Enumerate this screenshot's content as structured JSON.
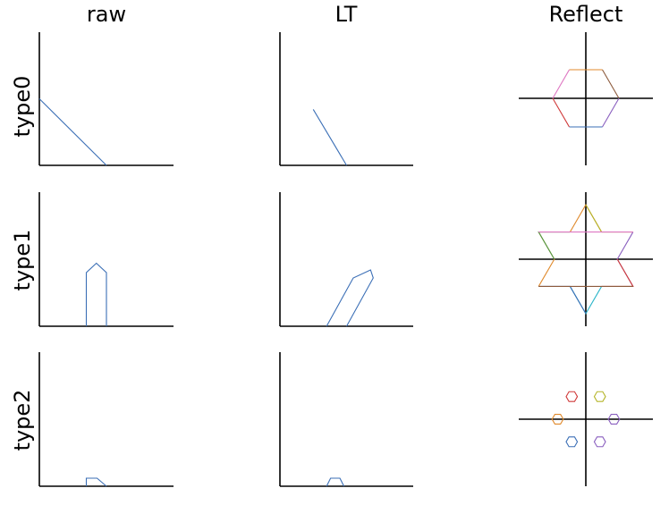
{
  "columns": [
    "raw",
    "LT",
    "Reflect"
  ],
  "rows": [
    "type0",
    "type1",
    "type2"
  ],
  "colors": {
    "blue": "#3b6fb6",
    "orange": "#e08a2c",
    "green": "#4e9a46",
    "red": "#d03a3a",
    "purple": "#8a5fbf",
    "brown": "#8c5a3c",
    "pink": "#de77c2",
    "olive": "#b5b52a",
    "cyan": "#2ab5c9",
    "axis": "#000000"
  },
  "chart_data": [
    {
      "type": "line",
      "row": "type0",
      "column": "raw",
      "series": [
        {
          "color": "#3b6fb6",
          "points": [
            [
              0,
              5
            ],
            [
              5,
              0
            ]
          ]
        }
      ]
    },
    {
      "type": "line",
      "row": "type0",
      "column": "LT",
      "series": [
        {
          "color": "#3b6fb6",
          "points": [
            [
              2.5,
              4.2
            ],
            [
              5,
              0
            ]
          ]
        }
      ]
    },
    {
      "type": "line",
      "row": "type0",
      "column": "Reflect",
      "series": [
        {
          "color": "#e08a2c",
          "points": [
            [
              -1,
              1.73
            ],
            [
              1,
              1.73
            ]
          ]
        },
        {
          "color": "#8c5a3c",
          "points": [
            [
              1,
              1.73
            ],
            [
              2,
              0
            ]
          ]
        },
        {
          "color": "#8a5fbf",
          "points": [
            [
              2,
              0
            ],
            [
              1,
              -1.73
            ]
          ]
        },
        {
          "color": "#3b6fb6",
          "points": [
            [
              1,
              -1.73
            ],
            [
              -1,
              -1.73
            ]
          ]
        },
        {
          "color": "#d03a3a",
          "points": [
            [
              -1,
              -1.73
            ],
            [
              -2,
              0
            ]
          ]
        },
        {
          "color": "#de77c2",
          "points": [
            [
              -2,
              0
            ],
            [
              -1,
              1.73
            ]
          ]
        }
      ]
    },
    {
      "type": "line",
      "row": "type1",
      "column": "raw",
      "series": [
        {
          "color": "#3b6fb6",
          "points": [
            [
              3.5,
              0
            ],
            [
              3.5,
              4
            ],
            [
              4.25,
              4.7
            ],
            [
              5,
              4
            ],
            [
              5,
              0
            ]
          ]
        }
      ]
    },
    {
      "type": "line",
      "row": "type1",
      "column": "LT",
      "series": [
        {
          "color": "#3b6fb6",
          "points": [
            [
              3.5,
              0
            ],
            [
              5.5,
              3.6
            ],
            [
              6.8,
              4.2
            ],
            [
              7,
              3.6
            ],
            [
              5,
              0
            ]
          ]
        }
      ]
    },
    {
      "type": "line",
      "row": "type1",
      "column": "Reflect",
      "series": [
        {
          "color": "#e08a2c",
          "points": [
            [
              -1,
              1.73
            ],
            [
              0,
              3.46
            ],
            [
              1,
              1.73
            ]
          ]
        },
        {
          "color": "#b5b52a",
          "points": [
            [
              0,
              3.46
            ],
            [
              1,
              1.73
            ],
            [
              3,
              1.73
            ]
          ]
        },
        {
          "color": "#8a5fbf",
          "points": [
            [
              3,
              1.73
            ],
            [
              2,
              0
            ],
            [
              3,
              -1.73
            ]
          ]
        },
        {
          "color": "#d03a3a",
          "points": [
            [
              2,
              0
            ],
            [
              3,
              -1.73
            ],
            [
              1,
              -1.73
            ]
          ]
        },
        {
          "color": "#2ab5c9",
          "points": [
            [
              1,
              -1.73
            ],
            [
              0,
              -3.46
            ],
            [
              -1,
              -1.73
            ]
          ]
        },
        {
          "color": "#3b6fb6",
          "points": [
            [
              0,
              -3.46
            ],
            [
              -1,
              -1.73
            ],
            [
              -3,
              -1.73
            ]
          ]
        },
        {
          "color": "#e08a2c",
          "points": [
            [
              -3,
              -1.73
            ],
            [
              -2,
              0
            ],
            [
              -3,
              1.73
            ]
          ]
        },
        {
          "color": "#4e9a46",
          "points": [
            [
              -2,
              0
            ],
            [
              -3,
              1.73
            ],
            [
              -1,
              1.73
            ]
          ]
        },
        {
          "color": "#de77c2",
          "points": [
            [
              -3,
              1.73
            ],
            [
              -1,
              1.73
            ],
            [
              1,
              1.73
            ],
            [
              3,
              1.73
            ]
          ]
        },
        {
          "color": "#8c5a3c",
          "points": [
            [
              -3,
              -1.73
            ],
            [
              -1,
              -1.73
            ],
            [
              1,
              -1.73
            ],
            [
              3,
              -1.73
            ]
          ]
        }
      ]
    },
    {
      "type": "line",
      "row": "type2",
      "column": "raw",
      "series": [
        {
          "color": "#3b6fb6",
          "points": [
            [
              3.5,
              0
            ],
            [
              3.5,
              0.6
            ],
            [
              4.3,
              0.6
            ],
            [
              5,
              0
            ]
          ]
        }
      ]
    },
    {
      "type": "line",
      "row": "type2",
      "column": "LT",
      "series": [
        {
          "color": "#3b6fb6",
          "points": [
            [
              3.5,
              0
            ],
            [
              3.8,
              0.6
            ],
            [
              4.5,
              0.6
            ],
            [
              4.8,
              0
            ]
          ]
        }
      ]
    },
    {
      "type": "line",
      "row": "type2",
      "column": "Reflect",
      "series": [
        {
          "color": "#d03a3a",
          "center": [
            -1,
            1.73
          ],
          "radius": 0.4
        },
        {
          "color": "#b5b52a",
          "center": [
            1,
            1.73
          ],
          "radius": 0.4
        },
        {
          "color": "#8a5fbf",
          "center": [
            2,
            0
          ],
          "radius": 0.4
        },
        {
          "color": "#e08a2c",
          "center": [
            -2,
            0
          ],
          "radius": 0.4
        },
        {
          "color": "#3b6fb6",
          "center": [
            -1,
            -1.73
          ],
          "radius": 0.4
        },
        {
          "color": "#8a5fbf",
          "center": [
            1,
            -1.73
          ],
          "radius": 0.4
        }
      ]
    }
  ]
}
